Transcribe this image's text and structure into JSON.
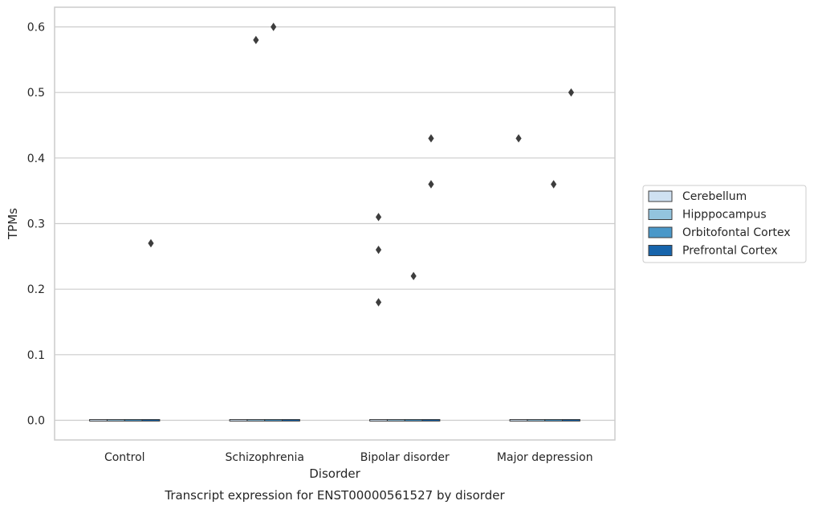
{
  "chart_data": {
    "type": "box",
    "caption": "Transcript expression for ENST00000561527 by disorder",
    "xlabel": "Disorder",
    "ylabel": "TPMs",
    "ylim": [
      -0.03,
      0.63
    ],
    "yticks": [
      0.0,
      0.1,
      0.2,
      0.3,
      0.4,
      0.5,
      0.6
    ],
    "ytick_labels": [
      "0.0",
      "0.1",
      "0.2",
      "0.3",
      "0.4",
      "0.5",
      "0.6"
    ],
    "grid": "horizontal",
    "legend_position": "right",
    "categories": [
      "Control",
      "Schizophrenia",
      "Bipolar disorder",
      "Major depression"
    ],
    "series": [
      {
        "name": "Cerebellum",
        "color": "#cfe1f2",
        "medians": [
          0,
          0,
          0,
          0
        ]
      },
      {
        "name": "Hipppocampus",
        "color": "#93c4de",
        "medians": [
          0,
          0,
          0,
          0
        ]
      },
      {
        "name": "Orbitofontal Cortex",
        "color": "#4a98c9",
        "medians": [
          0,
          0,
          0,
          0
        ]
      },
      {
        "name": "Prefrontal Cortex",
        "color": "#1764ab",
        "medians": [
          0,
          0,
          0,
          0
        ]
      }
    ],
    "outliers": [
      {
        "category": "Control",
        "series": "Prefrontal Cortex",
        "value": 0.27
      },
      {
        "category": "Schizophrenia",
        "series": "Hipppocampus",
        "value": 0.58
      },
      {
        "category": "Schizophrenia",
        "series": "Orbitofontal Cortex",
        "value": 0.6
      },
      {
        "category": "Bipolar disorder",
        "series": "Cerebellum",
        "value": 0.31
      },
      {
        "category": "Bipolar disorder",
        "series": "Cerebellum",
        "value": 0.26
      },
      {
        "category": "Bipolar disorder",
        "series": "Cerebellum",
        "value": 0.18
      },
      {
        "category": "Bipolar disorder",
        "series": "Orbitofontal Cortex",
        "value": 0.22
      },
      {
        "category": "Bipolar disorder",
        "series": "Prefrontal Cortex",
        "value": 0.43
      },
      {
        "category": "Bipolar disorder",
        "series": "Prefrontal Cortex",
        "value": 0.36
      },
      {
        "category": "Major depression",
        "series": "Cerebellum",
        "value": 0.43
      },
      {
        "category": "Major depression",
        "series": "Orbitofontal Cortex",
        "value": 0.36
      },
      {
        "category": "Major depression",
        "series": "Prefrontal Cortex",
        "value": 0.5
      }
    ],
    "outlier_color": "#3d3d3d",
    "grid_color": "#cccccc",
    "frame_color": "#cccccc"
  }
}
